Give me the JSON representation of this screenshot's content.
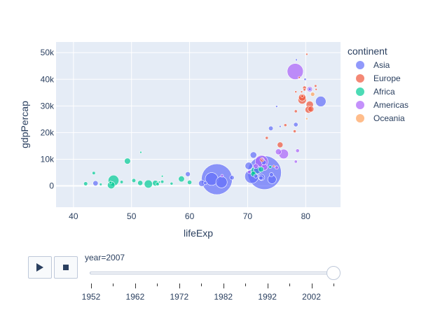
{
  "chart_data": {
    "type": "scatter",
    "title": "",
    "xlabel": "lifeExp",
    "ylabel": "gdpPercap",
    "xlim": [
      37,
      86
    ],
    "ylim": [
      -8000,
      54000
    ],
    "x_ticks": [
      {
        "value": 40,
        "label": "40"
      },
      {
        "value": 50,
        "label": "50"
      },
      {
        "value": 60,
        "label": "60"
      },
      {
        "value": 70,
        "label": "70"
      },
      {
        "value": 80,
        "label": "80"
      }
    ],
    "y_ticks": [
      {
        "value": 0,
        "label": "0"
      },
      {
        "value": 10000,
        "label": "10k"
      },
      {
        "value": 20000,
        "label": "20k"
      },
      {
        "value": 30000,
        "label": "30k"
      },
      {
        "value": 40000,
        "label": "40k"
      },
      {
        "value": 50000,
        "label": "50k"
      }
    ],
    "grid": true,
    "legend": {
      "title": "continent",
      "position": "right"
    },
    "series": [
      {
        "name": "Asia",
        "color": "#636efa",
        "points": [
          {
            "x": 64.7,
            "y": 2500,
            "pop": 1110
          },
          {
            "x": 72.9,
            "y": 4960,
            "pop": 1319
          },
          {
            "x": 70.7,
            "y": 3540,
            "pop": 223
          },
          {
            "x": 65.5,
            "y": 1390,
            "pop": 150
          },
          {
            "x": 63.8,
            "y": 2600,
            "pop": 190
          },
          {
            "x": 71.0,
            "y": 11600,
            "pop": 49
          },
          {
            "x": 82.6,
            "y": 31700,
            "pop": 127
          },
          {
            "x": 74.2,
            "y": 2440,
            "pop": 85
          },
          {
            "x": 71.7,
            "y": 6000,
            "pop": 71
          },
          {
            "x": 72.4,
            "y": 3200,
            "pop": 47
          },
          {
            "x": 70.2,
            "y": 7500,
            "pop": 65
          },
          {
            "x": 43.8,
            "y": 975,
            "pop": 32
          },
          {
            "x": 59.7,
            "y": 4400,
            "pop": 28
          },
          {
            "x": 62.1,
            "y": 950,
            "pop": 47
          },
          {
            "x": 72.8,
            "y": 8800,
            "pop": 27
          },
          {
            "x": 78.3,
            "y": 23000,
            "pop": 23
          },
          {
            "x": 74.0,
            "y": 21600,
            "pop": 25
          },
          {
            "x": 72.3,
            "y": 3000,
            "pop": 21
          },
          {
            "x": 67.3,
            "y": 3090,
            "pop": 23
          },
          {
            "x": 71.4,
            "y": 3700,
            "pop": 19
          },
          {
            "x": 74.1,
            "y": 4200,
            "pop": 20
          },
          {
            "x": 62.7,
            "y": 1090,
            "pop": 14
          },
          {
            "x": 80.7,
            "y": 36300,
            "pop": 9
          },
          {
            "x": 79.9,
            "y": 40000,
            "pop": 7
          },
          {
            "x": 75.6,
            "y": 22300,
            "pop": 4
          },
          {
            "x": 78.4,
            "y": 47300,
            "pop": 2.5
          },
          {
            "x": 75.0,
            "y": 29800,
            "pop": 0.7
          }
        ]
      },
      {
        "name": "Europe",
        "color": "#ef553b",
        "points": [
          {
            "x": 79.4,
            "y": 32300,
            "pop": 82
          },
          {
            "x": 80.7,
            "y": 30500,
            "pop": 61
          },
          {
            "x": 79.4,
            "y": 33200,
            "pop": 60
          },
          {
            "x": 80.5,
            "y": 28600,
            "pop": 58
          },
          {
            "x": 80.9,
            "y": 28800,
            "pop": 40
          },
          {
            "x": 75.6,
            "y": 15400,
            "pop": 38
          },
          {
            "x": 72.5,
            "y": 9800,
            "pop": 22
          },
          {
            "x": 79.8,
            "y": 36800,
            "pop": 16
          },
          {
            "x": 79.4,
            "y": 33700,
            "pop": 10
          },
          {
            "x": 78.1,
            "y": 20500,
            "pop": 10
          },
          {
            "x": 78.3,
            "y": 28000,
            "pop": 10
          },
          {
            "x": 76.5,
            "y": 22800,
            "pop": 10
          },
          {
            "x": 73.3,
            "y": 18000,
            "pop": 10
          },
          {
            "x": 79.8,
            "y": 36100,
            "pop": 8
          },
          {
            "x": 81.7,
            "y": 37500,
            "pop": 7.5
          },
          {
            "x": 78.3,
            "y": 35300,
            "pop": 5.5
          },
          {
            "x": 79.3,
            "y": 35300,
            "pop": 5.2
          },
          {
            "x": 80.2,
            "y": 49400,
            "pop": 4.6
          },
          {
            "x": 78.9,
            "y": 40700,
            "pop": 4.1
          },
          {
            "x": 74.5,
            "y": 7400,
            "pop": 4.5
          },
          {
            "x": 81.8,
            "y": 36200,
            "pop": 0.3
          }
        ]
      },
      {
        "name": "Africa",
        "color": "#00cc96",
        "points": [
          {
            "x": 46.9,
            "y": 2000,
            "pop": 135
          },
          {
            "x": 52.9,
            "y": 690,
            "pop": 77
          },
          {
            "x": 71.3,
            "y": 5600,
            "pop": 80
          },
          {
            "x": 46.5,
            "y": 280,
            "pop": 65
          },
          {
            "x": 49.3,
            "y": 9300,
            "pop": 44
          },
          {
            "x": 54.1,
            "y": 1040,
            "pop": 38
          },
          {
            "x": 58.6,
            "y": 2600,
            "pop": 42
          },
          {
            "x": 51.5,
            "y": 1100,
            "pop": 31
          },
          {
            "x": 71.0,
            "y": 4500,
            "pop": 33
          },
          {
            "x": 72.3,
            "y": 6200,
            "pop": 33
          },
          {
            "x": 60.0,
            "y": 1330,
            "pop": 23
          },
          {
            "x": 50.4,
            "y": 2000,
            "pop": 18
          },
          {
            "x": 42.1,
            "y": 820,
            "pop": 19
          },
          {
            "x": 48.3,
            "y": 1470,
            "pop": 12
          },
          {
            "x": 54.5,
            "y": 700,
            "pop": 14
          },
          {
            "x": 43.5,
            "y": 4800,
            "pop": 12
          },
          {
            "x": 55.3,
            "y": 1550,
            "pop": 12
          },
          {
            "x": 56.9,
            "y": 860,
            "pop": 10
          },
          {
            "x": 46.4,
            "y": 1240,
            "pop": 9
          },
          {
            "x": 44.7,
            "y": 580,
            "pop": 8
          },
          {
            "x": 73.9,
            "y": 7100,
            "pop": 10
          },
          {
            "x": 54.8,
            "y": 1440,
            "pop": 4
          },
          {
            "x": 55.3,
            "y": 3630,
            "pop": 1
          },
          {
            "x": 51.6,
            "y": 12600,
            "pop": 1.2
          }
        ]
      },
      {
        "name": "Americas",
        "color": "#ab63fa",
        "points": [
          {
            "x": 78.2,
            "y": 42950,
            "pop": 301
          },
          {
            "x": 72.4,
            "y": 9070,
            "pop": 190
          },
          {
            "x": 76.2,
            "y": 11980,
            "pop": 108
          },
          {
            "x": 72.9,
            "y": 7000,
            "pop": 44
          },
          {
            "x": 75.3,
            "y": 12780,
            "pop": 40
          },
          {
            "x": 80.7,
            "y": 36300,
            "pop": 33
          },
          {
            "x": 71.4,
            "y": 7400,
            "pop": 28
          },
          {
            "x": 78.6,
            "y": 13200,
            "pop": 16
          },
          {
            "x": 75.0,
            "y": 6900,
            "pop": 14
          },
          {
            "x": 70.3,
            "y": 5200,
            "pop": 12.6
          },
          {
            "x": 65.6,
            "y": 3800,
            "pop": 9
          },
          {
            "x": 72.6,
            "y": 10000,
            "pop": 3
          },
          {
            "x": 78.3,
            "y": 9100,
            "pop": 11
          }
        ]
      },
      {
        "name": "Oceania",
        "color": "#ffa15a",
        "points": [
          {
            "x": 81.2,
            "y": 34400,
            "pop": 20
          },
          {
            "x": 80.2,
            "y": 25200,
            "pop": 4
          }
        ]
      }
    ]
  },
  "controls": {
    "play_icon": "play-icon",
    "stop_icon": "stop-icon"
  },
  "slider": {
    "current_label": "year=2007",
    "current_value": 2007,
    "min": 1952,
    "max": 2007,
    "steps": [
      1952,
      1957,
      1962,
      1967,
      1972,
      1977,
      1982,
      1987,
      1992,
      1997,
      2002,
      2007
    ],
    "tick_labels": [
      "1952",
      "1962",
      "1972",
      "1982",
      "1992",
      "2002"
    ]
  }
}
